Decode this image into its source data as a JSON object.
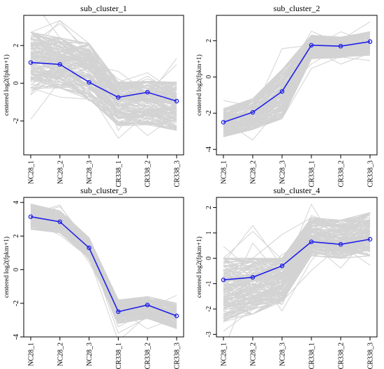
{
  "figure": {
    "x_categories": [
      "NC28_1",
      "NC28_2",
      "NC28_3",
      "CR338_1",
      "CR338_2",
      "CR338_3"
    ],
    "y_axis_label": "centered log2(fpkm+1)",
    "background_line_color": "#d3d3d3",
    "mean_line_color": "#1f1fe8"
  },
  "chart_data": [
    {
      "type": "line",
      "title": "sub_cluster_1",
      "ylabel": "centered log2(fpkm+1)",
      "categories": [
        "NC28_1",
        "NC28_2",
        "NC28_3",
        "CR338_1",
        "CR338_2",
        "CR338_3"
      ],
      "ylim": [
        -3.8,
        3.6
      ],
      "yticks": [
        -2,
        0,
        2
      ],
      "series": [
        {
          "values": [
            1.1,
            1.0,
            0.05,
            -0.75,
            -0.48,
            -0.95
          ]
        }
      ],
      "band": {
        "upper": [
          2.7,
          2.4,
          2.1,
          0.05,
          0.1,
          0.05
        ],
        "lower": [
          -0.25,
          -0.25,
          -0.85,
          -2.25,
          -2.2,
          -2.5
        ]
      }
    },
    {
      "type": "line",
      "title": "sub_cluster_2",
      "ylabel": "centered log2(fpkm+1)",
      "categories": [
        "NC28_1",
        "NC28_2",
        "NC28_3",
        "CR338_1",
        "CR338_2",
        "CR338_3"
      ],
      "ylim": [
        -4.3,
        3.4
      ],
      "yticks": [
        -4,
        -2,
        0,
        2
      ],
      "series": [
        {
          "values": [
            -2.5,
            -1.95,
            -0.8,
            1.75,
            1.7,
            1.95
          ]
        }
      ],
      "band": {
        "upper": [
          -1.8,
          -1.2,
          0.4,
          2.3,
          2.2,
          2.5
        ],
        "lower": [
          -3.3,
          -2.9,
          -2.3,
          1.0,
          1.1,
          1.2
        ]
      }
    },
    {
      "type": "line",
      "title": "sub_cluster_3",
      "ylabel": "centered log2(fpkm+1)",
      "categories": [
        "NC28_1",
        "NC28_2",
        "NC28_3",
        "CR338_1",
        "CR338_2",
        "CR338_3"
      ],
      "ylim": [
        -4.0,
        4.3
      ],
      "yticks": [
        -4,
        -2,
        0,
        2,
        4
      ],
      "series": [
        {
          "values": [
            3.15,
            2.85,
            1.3,
            -2.5,
            -2.1,
            -2.75
          ]
        }
      ],
      "band": {
        "upper": [
          3.9,
          3.5,
          1.9,
          -1.8,
          -1.6,
          -2.0
        ],
        "lower": [
          2.4,
          2.2,
          0.7,
          -3.2,
          -2.9,
          -3.5
        ]
      }
    },
    {
      "type": "line",
      "title": "sub_cluster_4",
      "ylabel": "centered log2(fpkm+1)",
      "categories": [
        "NC28_1",
        "NC28_2",
        "NC28_3",
        "CR338_1",
        "CR338_2",
        "CR338_3"
      ],
      "ylim": [
        -3.1,
        2.4
      ],
      "yticks": [
        -3,
        -2,
        -1,
        0,
        1,
        2
      ],
      "series": [
        {
          "values": [
            -0.85,
            -0.75,
            -0.3,
            0.65,
            0.55,
            0.75
          ]
        }
      ],
      "band": {
        "upper": [
          0.0,
          0.0,
          0.0,
          1.6,
          1.5,
          1.8
        ],
        "lower": [
          -2.5,
          -2.2,
          -1.7,
          0.1,
          0.0,
          0.1
        ]
      }
    }
  ]
}
